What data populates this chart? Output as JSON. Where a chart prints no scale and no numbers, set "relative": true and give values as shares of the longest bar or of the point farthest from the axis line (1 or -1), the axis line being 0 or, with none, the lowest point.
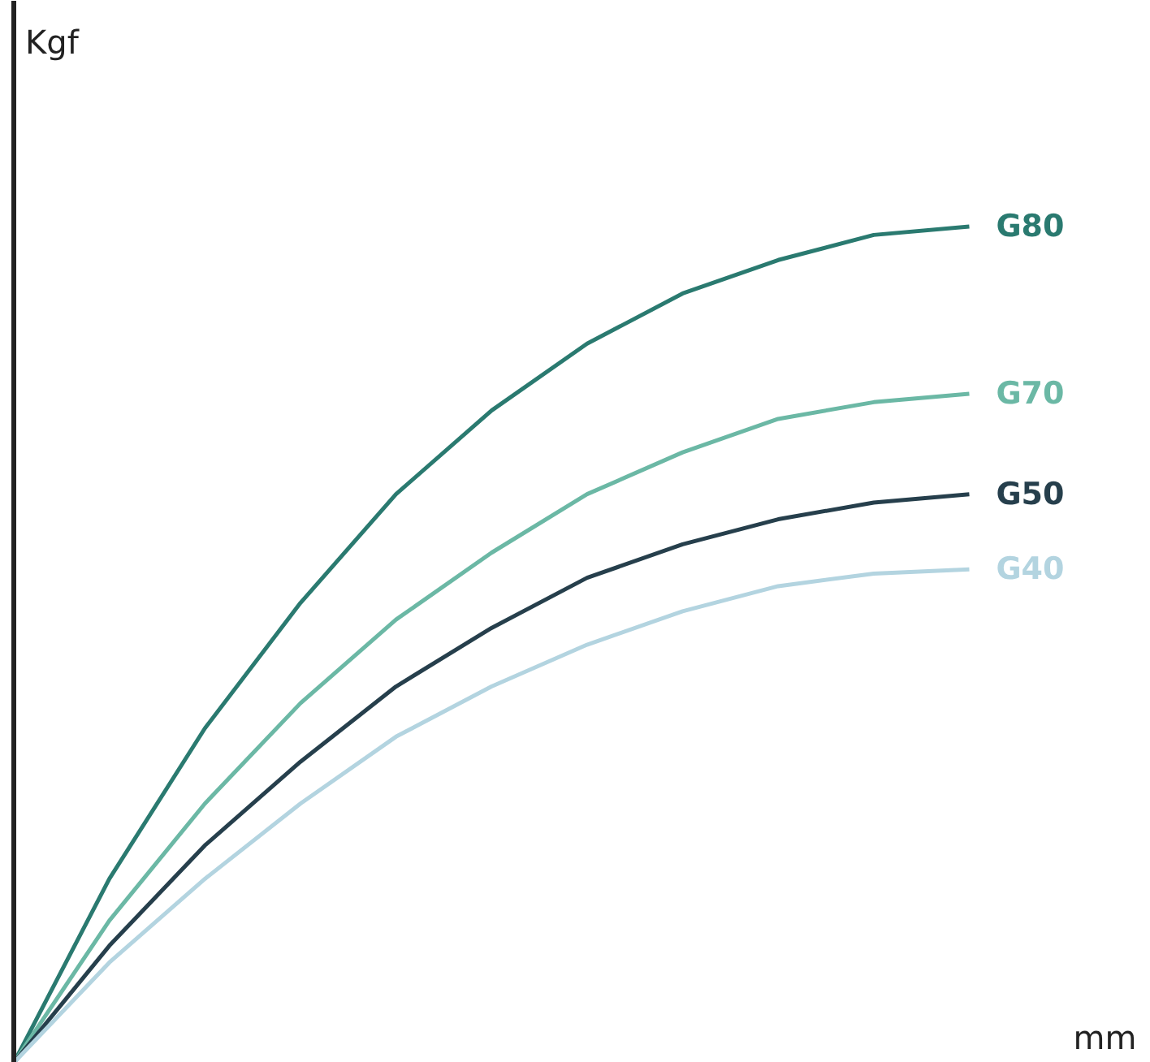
{
  "chart_data": {
    "type": "line",
    "relative": true,
    "xlabel": "mm",
    "annotations": [
      "Kgf"
    ],
    "categories": [
      null,
      null,
      null,
      null,
      null,
      null,
      null,
      null,
      null,
      null,
      null
    ],
    "series": [
      {
        "name": "G80",
        "color": "#2a7a70",
        "values": [
          0,
          0.22,
          0.4,
          0.55,
          0.68,
          0.78,
          0.86,
          0.92,
          0.96,
          0.99,
          1.0
        ]
      },
      {
        "name": "G70",
        "color": "#6bb8a5",
        "values": [
          0,
          0.17,
          0.31,
          0.43,
          0.53,
          0.61,
          0.68,
          0.73,
          0.77,
          0.79,
          0.8
        ]
      },
      {
        "name": "G50",
        "color": "#263f4c",
        "values": [
          0,
          0.14,
          0.26,
          0.36,
          0.45,
          0.52,
          0.58,
          0.62,
          0.65,
          0.67,
          0.68
        ]
      },
      {
        "name": "G40",
        "color": "#b3d4e0",
        "values": [
          0,
          0.12,
          0.22,
          0.31,
          0.39,
          0.45,
          0.5,
          0.54,
          0.57,
          0.585,
          0.59
        ]
      }
    ]
  }
}
